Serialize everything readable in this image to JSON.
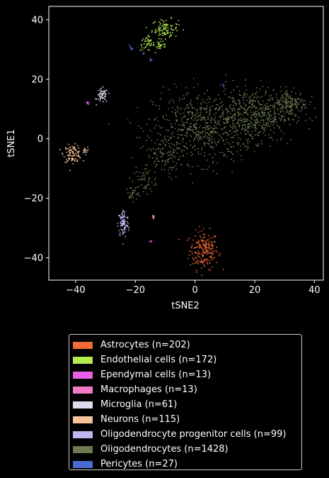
{
  "chart_data": {
    "type": "scatter",
    "xlabel": "tSNE2",
    "ylabel": "tSNE1",
    "xlim": [
      -49,
      43
    ],
    "ylim": [
      -47.5,
      44.5
    ],
    "x_ticks": [
      -40,
      -20,
      0,
      20,
      40
    ],
    "y_ticks": [
      40,
      20,
      0,
      -20,
      -40
    ],
    "x_tick_labels": [
      "−40",
      "−20",
      "0",
      "20",
      "40"
    ],
    "y_tick_labels": [
      "40",
      "20",
      "0",
      "−20",
      "−40"
    ],
    "grid": false,
    "legend_position": "below",
    "background": "#000000",
    "series": [
      {
        "name": "Astrocytes (n=202)",
        "color": "#f26a35",
        "count": 202,
        "clusters": [
          {
            "cx": 3.0,
            "cy": -37.5,
            "sx": 2.4,
            "sy": 3.2,
            "n": 202
          }
        ]
      },
      {
        "name": "Endothelial cells (n=172)",
        "color": "#b5ea4f",
        "count": 172,
        "clusters": [
          {
            "cx": -10.0,
            "cy": 37.0,
            "sx": 2.2,
            "sy": 1.6,
            "n": 100
          },
          {
            "cx": -16.0,
            "cy": 32.0,
            "sx": 1.2,
            "sy": 1.2,
            "n": 45
          },
          {
            "cx": -11.5,
            "cy": 31.5,
            "sx": 1.2,
            "sy": 1.0,
            "n": 27
          }
        ]
      },
      {
        "name": "Ependymal cells (n=13)",
        "color": "#e960e6",
        "count": 13,
        "clusters": [
          {
            "cx": -36.0,
            "cy": 12.0,
            "sx": 0.4,
            "sy": 0.2,
            "n": 8
          },
          {
            "cx": -15.0,
            "cy": -34.5,
            "sx": 0.3,
            "sy": 0.2,
            "n": 5
          }
        ]
      },
      {
        "name": "Macrophages (n=13)",
        "color": "#f07ac5",
        "count": 13,
        "clusters": [
          {
            "cx": -14.0,
            "cy": -26.5,
            "sx": 0.2,
            "sy": 0.4,
            "n": 13
          }
        ]
      },
      {
        "name": "Microglia (n=61)",
        "color": "#e0dcf0",
        "count": 61,
        "clusters": [
          {
            "cx": -31.0,
            "cy": 14.5,
            "sx": 0.9,
            "sy": 1.2,
            "n": 61
          }
        ]
      },
      {
        "name": "Neurons (n=115)",
        "color": "#f7c49a",
        "count": 115,
        "clusters": [
          {
            "cx": -41.0,
            "cy": -5.0,
            "sx": 1.5,
            "sy": 1.4,
            "n": 100
          },
          {
            "cx": -37.0,
            "cy": -4.0,
            "sx": 0.5,
            "sy": 0.6,
            "n": 15
          }
        ]
      },
      {
        "name": "Oligodendrocyte progenitor cells (n=99)",
        "color": "#c0b6f2",
        "count": 99,
        "clusters": [
          {
            "cx": -24.0,
            "cy": -28.5,
            "sx": 0.9,
            "sy": 2.4,
            "n": 99
          }
        ]
      },
      {
        "name": "Oligodendrocytes (n=1428)",
        "color": "#6b7a52",
        "count": 1428,
        "clusters": [
          {
            "cx": 3.0,
            "cy": 4.0,
            "sx": 8.5,
            "sy": 6.0,
            "n": 620
          },
          {
            "cx": 20.0,
            "cy": 8.0,
            "sx": 6.5,
            "sy": 4.5,
            "n": 450
          },
          {
            "cx": 32.0,
            "cy": 12.0,
            "sx": 3.0,
            "sy": 2.2,
            "n": 160
          },
          {
            "cx": -10.0,
            "cy": -5.0,
            "sx": 3.5,
            "sy": 3.5,
            "n": 120
          },
          {
            "cx": -17.0,
            "cy": -14.0,
            "sx": 2.0,
            "sy": 2.5,
            "n": 50
          },
          {
            "cx": -21.0,
            "cy": -18.5,
            "sx": 1.0,
            "sy": 1.2,
            "n": 28
          }
        ]
      },
      {
        "name": "Pericytes (n=27)",
        "color": "#4b6bd0",
        "count": 27,
        "clusters": [
          {
            "cx": -21.5,
            "cy": 30.5,
            "sx": 0.3,
            "sy": 0.3,
            "n": 9
          },
          {
            "cx": -15.0,
            "cy": 26.5,
            "sx": 0.3,
            "sy": 0.3,
            "n": 9
          },
          {
            "cx": 9.5,
            "cy": 18.0,
            "sx": 0.2,
            "sy": 0.2,
            "n": 5
          },
          {
            "cx": -17.0,
            "cy": 28.5,
            "sx": 0.2,
            "sy": 0.2,
            "n": 4
          }
        ]
      }
    ]
  }
}
